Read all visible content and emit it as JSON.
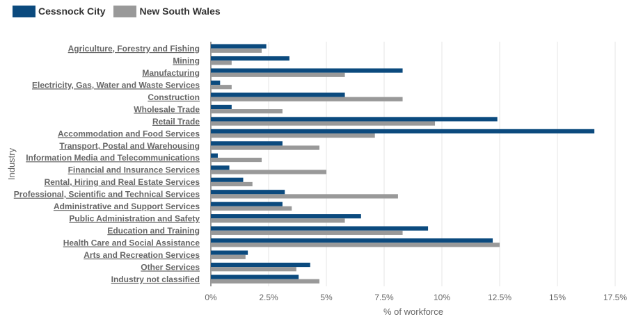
{
  "chart_data": {
    "type": "bar",
    "orientation": "horizontal",
    "title": "",
    "xlabel": "% of workforce",
    "ylabel": "Industry",
    "xlim": [
      0,
      17.5
    ],
    "xticks": [
      {
        "value": 0,
        "label": "0%"
      },
      {
        "value": 2.5,
        "label": "2.5%"
      },
      {
        "value": 5,
        "label": "5%"
      },
      {
        "value": 7.5,
        "label": "7.5%"
      },
      {
        "value": 10,
        "label": "10%"
      },
      {
        "value": 12.5,
        "label": "12.5%"
      },
      {
        "value": 15,
        "label": "15%"
      },
      {
        "value": 17.5,
        "label": "17.5%"
      }
    ],
    "grid": true,
    "legend_position": "top-left",
    "categories": [
      "Agriculture, Forestry and Fishing",
      "Mining",
      "Manufacturing",
      "Electricity, Gas, Water and Waste Services",
      "Construction",
      "Wholesale Trade",
      "Retail Trade",
      "Accommodation and Food Services",
      "Transport, Postal and Warehousing",
      "Information Media and Telecommunications",
      "Financial and Insurance Services",
      "Rental, Hiring and Real Estate Services",
      "Professional, Scientific and Technical Services",
      "Administrative and Support Services",
      "Public Administration and Safety",
      "Education and Training",
      "Health Care and Social Assistance",
      "Arts and Recreation Services",
      "Other Services",
      "Industry not classified"
    ],
    "series": [
      {
        "name": "Cessnock City",
        "color": "#0b4a7e",
        "values": [
          2.4,
          3.4,
          8.3,
          0.4,
          5.8,
          0.9,
          12.4,
          16.6,
          3.1,
          0.3,
          0.8,
          1.4,
          3.2,
          3.1,
          6.5,
          9.4,
          12.2,
          1.6,
          4.3,
          3.8
        ]
      },
      {
        "name": "New South Wales",
        "color": "#999999",
        "values": [
          2.2,
          0.9,
          5.8,
          0.9,
          8.3,
          3.1,
          9.7,
          7.1,
          4.7,
          2.2,
          5.0,
          1.8,
          8.1,
          3.5,
          5.8,
          8.3,
          12.5,
          1.5,
          3.7,
          4.7
        ]
      }
    ]
  }
}
